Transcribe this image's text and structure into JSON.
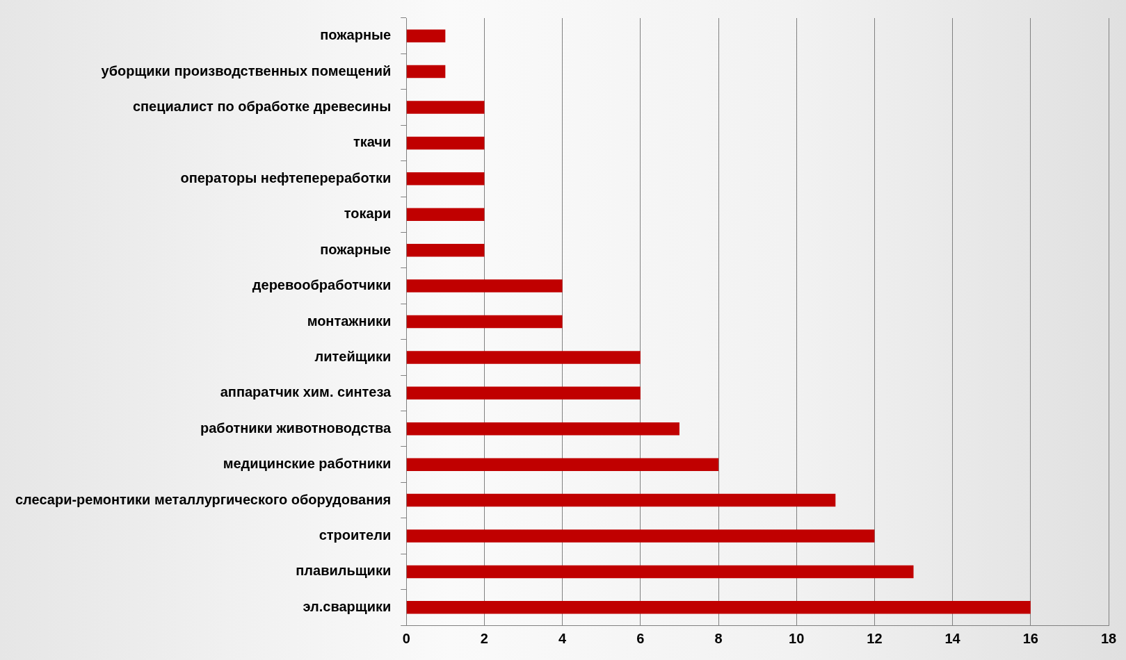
{
  "chart_data": {
    "type": "bar",
    "orientation": "horizontal",
    "categories": [
      "пожарные",
      "уборщики производственных помещений",
      "специалист по обработке древесины",
      "ткачи",
      "операторы нефтепереработки",
      "токари",
      "пожарные",
      "деревообработчики",
      "монтажники",
      "литейщики",
      "аппаратчик хим. синтеза",
      "работники животноводства",
      "медицинские работники",
      "слесари-ремонтики металлургического оборудования",
      "строители",
      "плавильщики",
      "эл.сварщики"
    ],
    "values": [
      1,
      1,
      2,
      2,
      2,
      2,
      2,
      4,
      4,
      6,
      6,
      7,
      8,
      11,
      12,
      13,
      16
    ],
    "color": "#c00000",
    "xlim": [
      0,
      18
    ],
    "xticks": [
      0,
      2,
      4,
      6,
      8,
      10,
      12,
      14,
      16,
      18
    ],
    "grid": "x",
    "legend": false
  }
}
